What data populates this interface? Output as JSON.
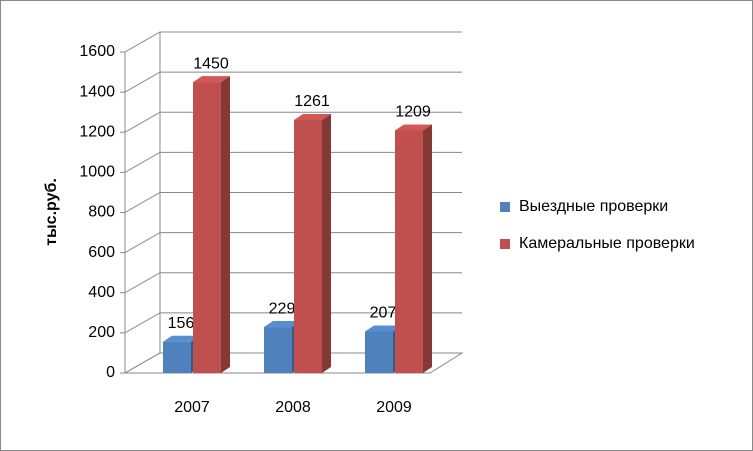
{
  "chart_data": {
    "type": "bar3d",
    "y_label": "тыс.руб.",
    "categories": [
      "2007",
      "2008",
      "2009"
    ],
    "series": [
      {
        "name": "Выездные проверки",
        "color": "#4f81bd",
        "values": [
          156,
          229,
          207
        ]
      },
      {
        "name": "Камеральные проверки",
        "color": "#c0504d",
        "values": [
          1450,
          1261,
          1209
        ]
      }
    ],
    "ylim": [
      0,
      1600
    ],
    "yticks": [
      0,
      200,
      400,
      600,
      800,
      1000,
      1200,
      1400,
      1600
    ],
    "grid": true,
    "legend": "right"
  }
}
